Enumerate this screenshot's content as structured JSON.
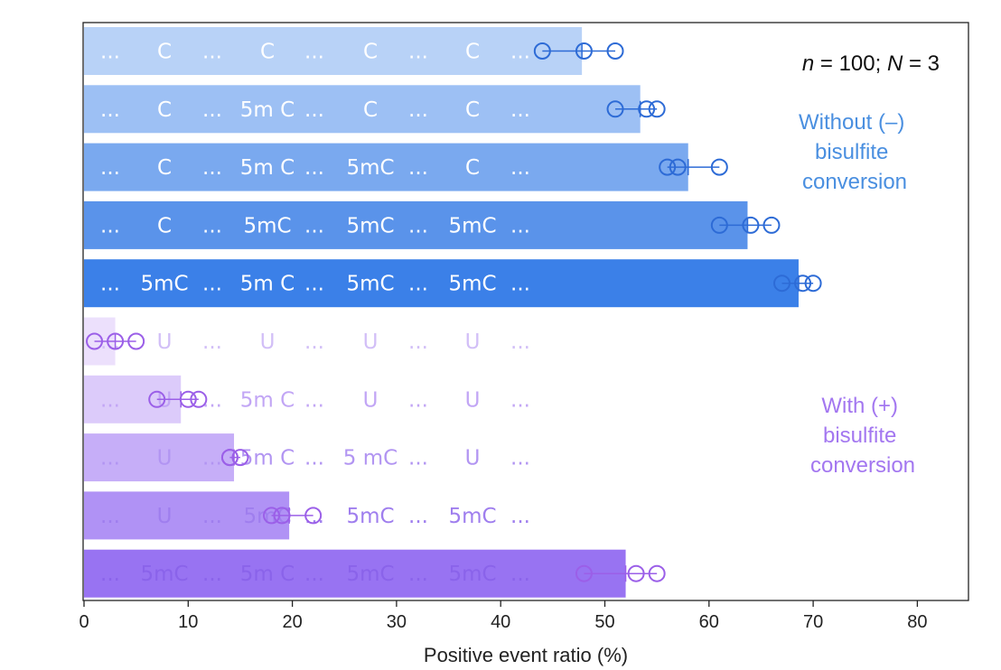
{
  "chart_data": {
    "type": "bar",
    "orientation": "horizontal",
    "xlabel": "Positive event ratio (%)",
    "xlim": [
      0,
      85
    ],
    "xticks": [
      0,
      10,
      20,
      30,
      40,
      50,
      60,
      70,
      80
    ],
    "grid": false,
    "annotation": "n = 100; N = 3",
    "groups": [
      {
        "label_lines": [
          "Without (–)",
          "bisulfite",
          "conversion"
        ],
        "color": "#4a8fe0"
      },
      {
        "label_lines": [
          "With (+)",
          "bisulfite",
          "conversion"
        ],
        "color": "#a377f0"
      }
    ],
    "bars": [
      {
        "sequence": [
          "...",
          "C",
          "...",
          "C",
          "...",
          "C",
          "...",
          "C",
          "..."
        ],
        "value": 47.8,
        "points": [
          44,
          48,
          51
        ],
        "bar_color": "#b8d2f7",
        "text_color": "#ffffff",
        "marker_color": "#2d6bd6"
      },
      {
        "sequence": [
          "...",
          "C",
          "...",
          "5m C",
          "...",
          "C",
          "...",
          "C",
          "..."
        ],
        "value": 53.4,
        "points": [
          51,
          54,
          55
        ],
        "bar_color": "#9dc0f4",
        "text_color": "#ffffff",
        "marker_color": "#2d6bd6"
      },
      {
        "sequence": [
          "...",
          "C",
          "...",
          "5m C",
          "...",
          "5mC",
          "...",
          "C",
          "..."
        ],
        "value": 58.0,
        "points": [
          56,
          57,
          61
        ],
        "bar_color": "#7aa9ef",
        "text_color": "#ffffff",
        "marker_color": "#2d6bd6"
      },
      {
        "sequence": [
          "...",
          "C",
          "...",
          "5mC",
          "...",
          "5mC",
          "...",
          "5mC",
          "..."
        ],
        "value": 63.7,
        "points": [
          61,
          64,
          66
        ],
        "bar_color": "#5a93ea",
        "text_color": "#ffffff",
        "marker_color": "#2d6bd6"
      },
      {
        "sequence": [
          "...",
          "5mC",
          "...",
          "5m C",
          "...",
          "5mC",
          "...",
          "5mC",
          "..."
        ],
        "value": 68.6,
        "points": [
          67,
          69,
          70
        ],
        "bar_color": "#3b80e8",
        "text_color": "#ffffff",
        "marker_color": "#2d6bd6"
      },
      {
        "sequence": [
          "...",
          "U",
          "...",
          "U",
          "...",
          "U",
          "...",
          "U",
          "..."
        ],
        "value": 3.0,
        "points": [
          1,
          3,
          5
        ],
        "bar_color": "#ece0fc",
        "text_color": "#d2bff7",
        "marker_color": "#9b5fe8"
      },
      {
        "sequence": [
          "...",
          "U",
          "...",
          "5m C",
          "...",
          "U",
          "...",
          "U",
          "..."
        ],
        "value": 9.3,
        "points": [
          7,
          10,
          11
        ],
        "bar_color": "#dccbfa",
        "text_color": "#c2a6f5",
        "marker_color": "#9b5fe8"
      },
      {
        "sequence": [
          "...",
          "U",
          "...",
          "5m C",
          "...",
          "5 mC",
          "...",
          "U",
          "..."
        ],
        "value": 14.4,
        "points": [
          14,
          14,
          15
        ],
        "bar_color": "#c6aef8",
        "text_color": "#b295f2",
        "marker_color": "#9b5fe8"
      },
      {
        "sequence": [
          "...",
          "U",
          "...",
          "5mC",
          "...",
          "5mC",
          "...",
          "5mC",
          "..."
        ],
        "value": 19.7,
        "points": [
          18,
          19,
          22
        ],
        "bar_color": "#b092f5",
        "text_color": "#9f7eee",
        "marker_color": "#9b5fe8"
      },
      {
        "sequence": [
          "...",
          "5mC",
          "...",
          "5m C",
          "...",
          "5mC",
          "...",
          "5mC",
          "..."
        ],
        "value": 52.0,
        "points": [
          48,
          53,
          55
        ],
        "bar_color": "#9873f2",
        "text_color": "#8a63ea",
        "marker_color": "#9b5fe8"
      }
    ]
  }
}
